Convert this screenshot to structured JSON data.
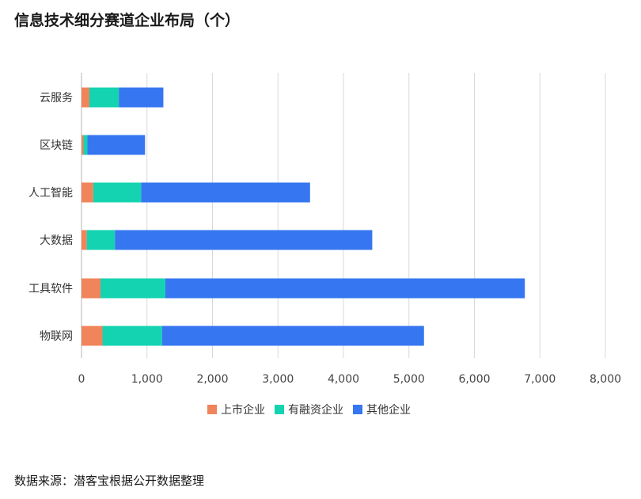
{
  "title": "信息技术细分赛道企业布局（个）",
  "source": "数据来源：潜客宝根据公开数据整理",
  "colors": {
    "listed": "#f0845a",
    "funded": "#14d3b0",
    "other": "#3676f0",
    "grid": "#d9d9d9",
    "axis": "#b5b5b5"
  },
  "chart_data": {
    "type": "bar",
    "orientation": "horizontal",
    "stacked": true,
    "categories": [
      "云服务",
      "区块链",
      "人工智能",
      "大数据",
      "工具软件",
      "物联网"
    ],
    "series": [
      {
        "name": "上市企业",
        "values": [
          120,
          30,
          180,
          80,
          290,
          320
        ]
      },
      {
        "name": "有融资企业",
        "values": [
          450,
          60,
          730,
          430,
          990,
          910
        ]
      },
      {
        "name": "其他企业",
        "values": [
          680,
          880,
          2580,
          3930,
          5490,
          4000
        ]
      }
    ],
    "x_ticks": [
      "0",
      "1,000",
      "2,000",
      "3,000",
      "4,000",
      "5,000",
      "6,000",
      "7,000",
      "8,000"
    ],
    "xlim": [
      0,
      8000
    ],
    "grid": true,
    "legend": "bottom"
  }
}
